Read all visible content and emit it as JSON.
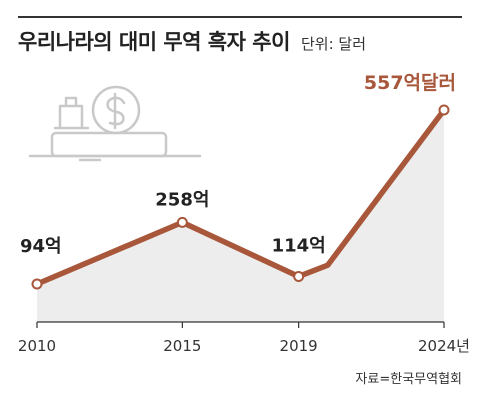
{
  "title": "우리나라의 대미 무역 흑자 추이",
  "unit": "단위: 달러",
  "source": "자료=한국무역협회",
  "colors": {
    "line": "#a8573a",
    "area": "#ededed",
    "label_default": "#222222",
    "label_highlight": "#a8573a",
    "axis": "#333333",
    "icon": "#c9c9c9"
  },
  "icon": "money-coin-hand-icon",
  "chart_data": {
    "type": "line",
    "title": "우리나라의 대미 무역 흑자 추이",
    "unit": "단위: 달러",
    "x_tick_labels": [
      "2010",
      "2015",
      "2019",
      "2024년"
    ],
    "points": [
      {
        "x": 2010,
        "value": 94,
        "label": "94억"
      },
      {
        "x": 2015,
        "value": 258,
        "label": "258억"
      },
      {
        "x": 2019,
        "value": 114,
        "label": "114억"
      },
      {
        "x": 2020,
        "value": 144,
        "label": ""
      },
      {
        "x": 2024,
        "value": 557,
        "label": "557억달러"
      }
    ],
    "marked_points": [
      2010,
      2015,
      2019,
      2024
    ],
    "xlim": [
      2010,
      2024
    ],
    "ylim": [
      0,
      600
    ],
    "grid": false,
    "legend": "none"
  }
}
